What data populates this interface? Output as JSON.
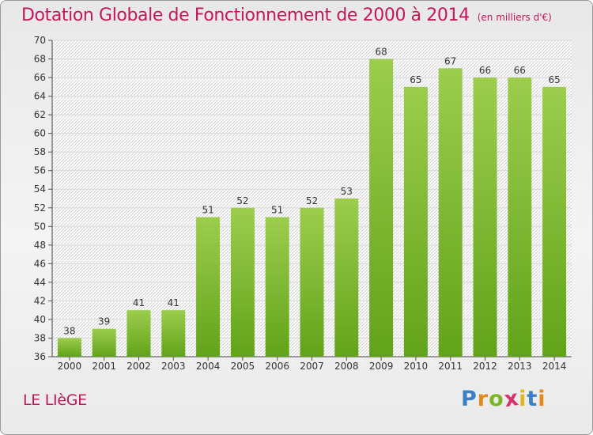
{
  "header": {
    "title": "Dotation Globale de Fonctionnement de 2000 à 2014",
    "subtitle": "(en milliers d'€)"
  },
  "footer": {
    "place": "LE LIèGE",
    "logo": [
      "P",
      "r",
      "o",
      "x",
      "i",
      "t",
      "i"
    ]
  },
  "colors": {
    "accent": "#c2185b",
    "bar_light": "#9ccd4d",
    "bar_dark": "#62a31a"
  },
  "chart_data": {
    "type": "bar",
    "title": "Dotation Globale de Fonctionnement de 2000 à 2014",
    "subtitle": "(en milliers d'€)",
    "categories": [
      "2000",
      "2001",
      "2002",
      "2003",
      "2004",
      "2005",
      "2006",
      "2007",
      "2008",
      "2009",
      "2010",
      "2011",
      "2012",
      "2013",
      "2014"
    ],
    "values": [
      38,
      39,
      41,
      41,
      51,
      52,
      51,
      52,
      53,
      68,
      65,
      67,
      66,
      66,
      65
    ],
    "xlabel": "",
    "ylabel": "",
    "ylim": [
      36,
      70
    ],
    "yticks": [
      36,
      38,
      40,
      42,
      44,
      46,
      48,
      50,
      52,
      54,
      56,
      58,
      60,
      62,
      64,
      66,
      68,
      70
    ],
    "grid": true,
    "data_labels": true
  }
}
